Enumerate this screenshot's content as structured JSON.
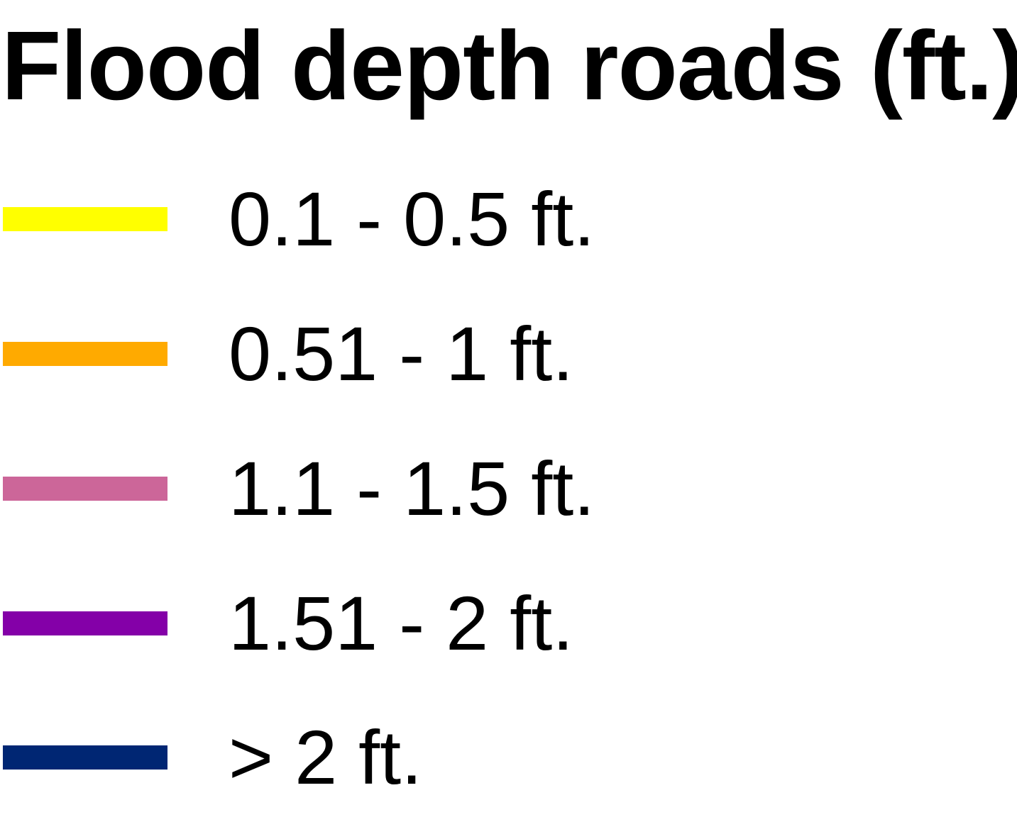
{
  "legend": {
    "title": "Flood depth roads (ft.)",
    "items": [
      {
        "label": "0.1 - 0.5 ft.",
        "color": "#ffff00"
      },
      {
        "label": "0.51 - 1 ft.",
        "color": "#ffaa00"
      },
      {
        "label": "1.1 - 1.5 ft.",
        "color": "#cc6699"
      },
      {
        "label": "1.51 - 2 ft.",
        "color": "#8400a8"
      },
      {
        "label": "> 2 ft.",
        "color": "#002673"
      }
    ]
  }
}
